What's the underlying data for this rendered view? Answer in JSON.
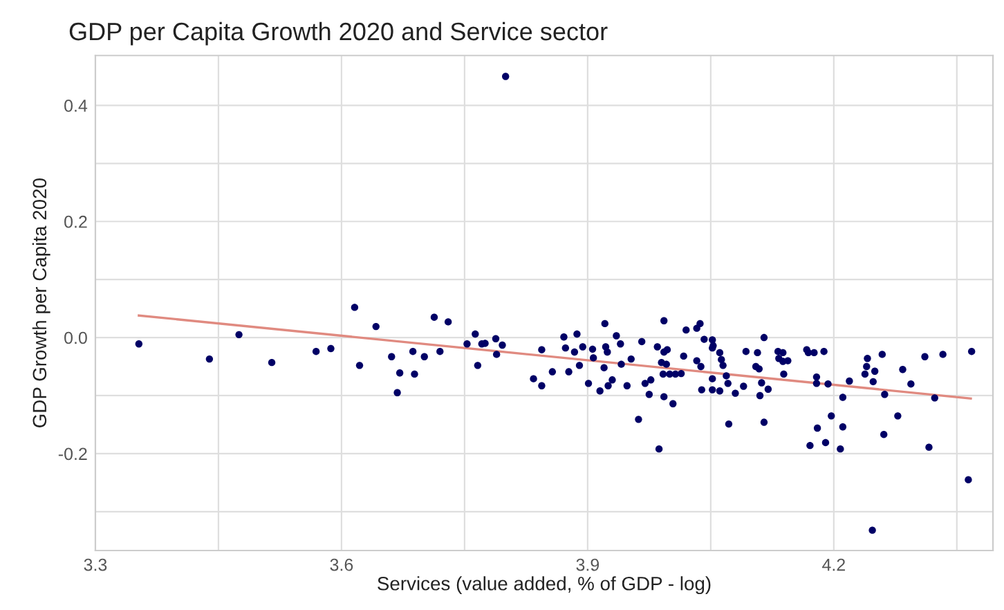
{
  "chart_data": {
    "type": "scatter",
    "title": "GDP per Capita Growth 2020 and Service sector",
    "xlabel": "Services (value added, % of GDP - log)",
    "ylabel": "GDP Growth per Capita 2020",
    "xlim": [
      3.3,
      4.394
    ],
    "ylim": [
      -0.367,
      0.486
    ],
    "xticks": [
      3.3,
      {
        "value": 3.45,
        "label": null
      },
      3.6,
      {
        "value": 3.75,
        "label": null
      },
      3.9,
      {
        "value": 4.05,
        "label": null
      },
      4.2,
      {
        "value": 4.35,
        "label": null
      }
    ],
    "yticks": [
      {
        "value": -0.3,
        "label": null
      },
      {
        "value": -0.2,
        "label": "-0.2"
      },
      {
        "value": -0.1,
        "label": null
      },
      {
        "value": 0.0,
        "label": "0.0"
      },
      {
        "value": 0.1,
        "label": null
      },
      {
        "value": 0.2,
        "label": "0.2"
      },
      {
        "value": 0.3,
        "label": null
      },
      {
        "value": 0.4,
        "label": "0.4"
      }
    ],
    "grid": true,
    "series": [
      {
        "marker": "circle",
        "color": "#000066",
        "x": [
          3.353,
          3.439,
          3.475,
          3.515,
          3.569,
          3.587,
          3.616,
          3.642,
          3.622,
          3.661,
          3.671,
          3.668,
          3.687,
          3.689,
          3.701,
          3.713,
          3.72,
          3.73,
          3.753,
          3.763,
          3.771,
          3.775,
          3.766,
          3.788,
          3.796,
          3.789,
          3.8,
          3.844,
          3.834,
          3.844,
          3.857,
          3.871,
          3.873,
          3.887,
          3.884,
          3.877,
          3.894,
          3.901,
          3.89,
          3.906,
          3.907,
          3.921,
          3.922,
          3.924,
          3.92,
          3.915,
          3.925,
          3.93,
          3.935,
          3.94,
          3.941,
          3.948,
          3.953,
          3.966,
          3.97,
          3.977,
          3.975,
          3.962,
          3.987,
          3.985,
          3.993,
          3.993,
          3.997,
          3.99,
          3.996,
          3.992,
          4.0,
          4.007,
          4.014,
          3.993,
          4.004,
          4.02,
          4.033,
          4.037,
          4.017,
          4.033,
          4.042,
          4.052,
          4.038,
          4.039,
          4.052,
          4.052,
          4.053,
          4.061,
          4.063,
          4.065,
          4.052,
          4.061,
          4.069,
          4.071,
          4.08,
          4.09,
          4.072,
          4.093,
          4.107,
          4.105,
          4.109,
          4.115,
          4.112,
          4.12,
          4.11,
          4.115,
          4.132,
          4.138,
          4.133,
          4.138,
          4.144,
          4.139,
          4.167,
          4.169,
          4.176,
          4.188,
          4.179,
          4.179,
          4.193,
          4.211,
          4.197,
          4.18,
          4.211,
          4.171,
          4.19,
          4.208,
          4.219,
          4.241,
          4.24,
          4.238,
          4.25,
          4.248,
          4.259,
          4.262,
          4.261,
          4.247,
          4.278,
          4.284,
          4.294,
          4.311,
          4.323,
          4.316,
          4.333,
          4.368,
          4.364
        ],
        "values": [
          -0.011,
          -0.037,
          0.005,
          -0.043,
          -0.024,
          -0.019,
          0.052,
          0.019,
          -0.048,
          -0.033,
          -0.061,
          -0.095,
          -0.024,
          -0.063,
          -0.033,
          0.035,
          -0.024,
          0.027,
          -0.011,
          0.006,
          -0.011,
          -0.01,
          -0.048,
          -0.002,
          -0.013,
          -0.029,
          0.45,
          -0.021,
          -0.071,
          -0.083,
          -0.059,
          0.001,
          -0.018,
          0.006,
          -0.025,
          -0.059,
          -0.016,
          -0.079,
          -0.048,
          -0.02,
          -0.035,
          0.024,
          -0.016,
          -0.025,
          -0.052,
          -0.092,
          -0.083,
          -0.073,
          0.003,
          -0.011,
          -0.046,
          -0.083,
          -0.037,
          -0.007,
          -0.079,
          -0.073,
          -0.098,
          -0.141,
          -0.192,
          -0.016,
          0.029,
          -0.025,
          -0.021,
          -0.043,
          -0.046,
          -0.063,
          -0.063,
          -0.063,
          -0.062,
          -0.102,
          -0.114,
          0.013,
          0.016,
          0.024,
          -0.032,
          -0.04,
          -0.003,
          -0.018,
          -0.05,
          -0.09,
          -0.09,
          -0.004,
          -0.014,
          -0.026,
          -0.038,
          -0.048,
          -0.071,
          -0.092,
          -0.066,
          -0.079,
          -0.096,
          -0.084,
          -0.149,
          -0.024,
          -0.026,
          -0.05,
          -0.054,
          0.0,
          -0.078,
          -0.089,
          -0.1,
          -0.146,
          -0.024,
          -0.026,
          -0.036,
          -0.041,
          -0.04,
          -0.063,
          -0.021,
          -0.026,
          -0.026,
          -0.024,
          -0.068,
          -0.079,
          -0.08,
          -0.103,
          -0.135,
          -0.156,
          -0.154,
          -0.186,
          -0.181,
          -0.192,
          -0.075,
          -0.036,
          -0.05,
          -0.063,
          -0.058,
          -0.076,
          -0.029,
          -0.098,
          -0.167,
          -0.332,
          -0.135,
          -0.055,
          -0.08,
          -0.033,
          -0.104,
          -0.189,
          -0.029,
          -0.024,
          -0.245
        ]
      },
      {
        "type": "line",
        "color": "#e08a80",
        "x": [
          3.353,
          4.367
        ],
        "values": [
          0.038,
          -0.105
        ]
      }
    ]
  }
}
